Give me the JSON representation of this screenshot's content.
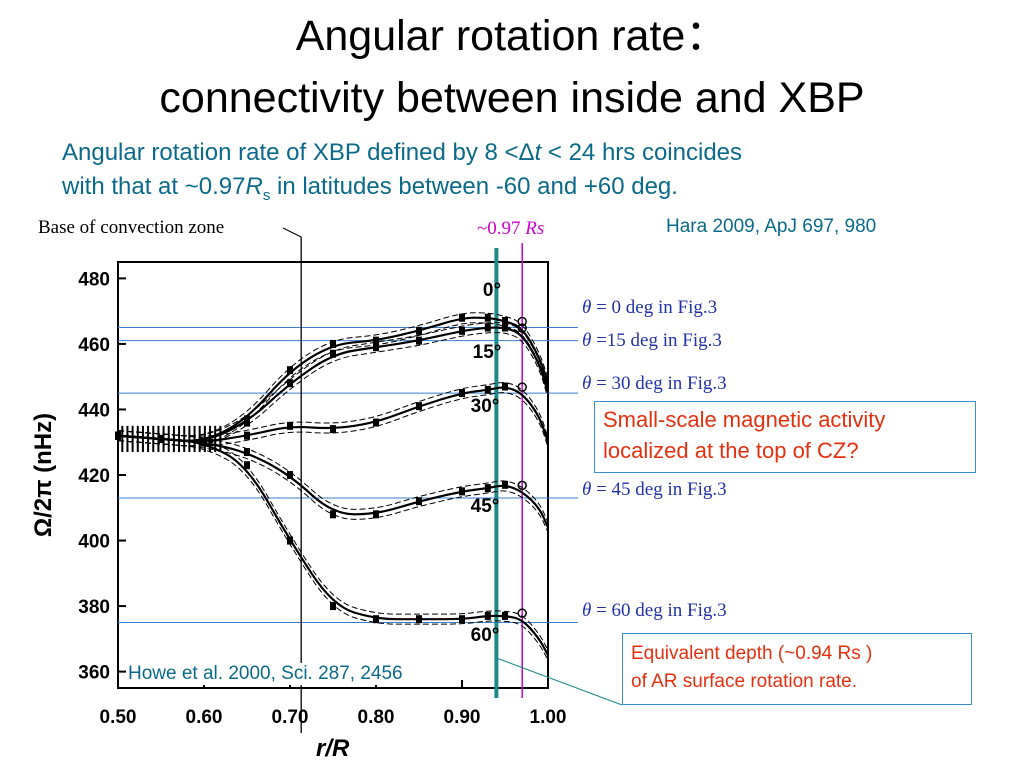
{
  "title": {
    "line1": "Angular rotation rate：",
    "line2": "connectivity between inside and XBP"
  },
  "subtitle": {
    "part1": "Angular rotation rate of XBP defined by 8 <Δ",
    "t": "t",
    "part2": " < 24 hrs  coincides",
    "part3": "with that at ~0.97",
    "R": "R",
    "s": "s",
    "part4": " in latitudes between -60 and +60 deg."
  },
  "reference_top": "Hara 2009,  ApJ 697, 980",
  "figure": {
    "base_cz_label": "Base of convection zone",
    "rs_label_prefix": "~0.97 ",
    "rs_label_italic": "Rs",
    "ylabel": "Ω/2π (nHz)",
    "xlabel": "r/R",
    "reference": "Howe et al. 2000, Sci. 287, 2456"
  },
  "theta_labels": [
    {
      "sym": "θ",
      "text": " = 0 deg in Fig.3"
    },
    {
      "sym": "θ",
      "text": " =15 deg in Fig.3"
    },
    {
      "sym": "θ",
      "text": " = 30 deg in Fig.3"
    },
    {
      "sym": "θ",
      "text": " = 45 deg in Fig.3"
    },
    {
      "sym": "θ",
      "text": " = 60 deg in Fig.3"
    }
  ],
  "callouts": {
    "small_scale_line1": "Small-scale magnetic activity",
    "small_scale_line2": "localized at the top of CZ?",
    "equiv_line1": "Equivalent depth (~0.94 Rs )",
    "equiv_line2": "of AR surface rotation rate."
  },
  "colors": {
    "subtitle": "#0b6a8a",
    "theta_labels": "#2233aa",
    "callout_text": "#e53010",
    "callout_border": "#3a8fd0",
    "rs_line": "#cc00cc",
    "depth_line": "#1a8a8a",
    "ref_lines": "#3a7fd0"
  },
  "chart_data": {
    "type": "line",
    "xlabel": "r/R",
    "ylabel": "Ω/2π (nHz)",
    "xlim": [
      0.5,
      1.0
    ],
    "ylim": [
      355,
      485
    ],
    "x_ticks": [
      "0.50",
      "0.60",
      "0.70",
      "0.80",
      "0.90",
      "1.00"
    ],
    "y_ticks": [
      "360",
      "380",
      "400",
      "420",
      "440",
      "460",
      "480"
    ],
    "vertical_lines": [
      {
        "label": "Base of convection zone",
        "x": 0.713
      },
      {
        "label": "~0.94 Rs",
        "x": 0.94
      },
      {
        "label": "~0.97 Rs",
        "x": 0.97
      }
    ],
    "horizontal_refs": [
      465,
      461,
      445,
      413,
      375
    ],
    "series": [
      {
        "name": "0°",
        "x": [
          0.5,
          0.55,
          0.6,
          0.65,
          0.7,
          0.75,
          0.8,
          0.85,
          0.9,
          0.93,
          0.95,
          0.97,
          0.99,
          1.0
        ],
        "values": [
          432,
          431,
          430,
          437,
          452,
          460,
          461,
          464,
          468,
          468,
          467,
          465,
          456,
          448
        ]
      },
      {
        "name": "15°",
        "x": [
          0.5,
          0.55,
          0.6,
          0.65,
          0.7,
          0.75,
          0.8,
          0.85,
          0.9,
          0.93,
          0.95,
          0.97,
          0.99,
          1.0
        ],
        "values": [
          432,
          431,
          430,
          436,
          448,
          457,
          459,
          461,
          464,
          465,
          465,
          463,
          454,
          445
        ]
      },
      {
        "name": "30°",
        "x": [
          0.5,
          0.55,
          0.6,
          0.65,
          0.7,
          0.75,
          0.8,
          0.85,
          0.9,
          0.93,
          0.95,
          0.97,
          0.99,
          1.0
        ],
        "values": [
          432,
          431,
          430,
          432,
          435,
          434,
          436,
          441,
          445,
          446,
          447,
          445,
          438,
          430
        ]
      },
      {
        "name": "45°",
        "x": [
          0.5,
          0.55,
          0.6,
          0.65,
          0.7,
          0.75,
          0.8,
          0.85,
          0.9,
          0.93,
          0.95,
          0.97,
          0.99,
          1.0
        ],
        "values": [
          432,
          431,
          430,
          427,
          420,
          408,
          408,
          412,
          415,
          416,
          417,
          415,
          410,
          404
        ]
      },
      {
        "name": "60°",
        "x": [
          0.5,
          0.55,
          0.6,
          0.65,
          0.7,
          0.75,
          0.8,
          0.85,
          0.9,
          0.93,
          0.95,
          0.97,
          0.99,
          1.0
        ],
        "values": [
          432,
          431,
          430,
          423,
          400,
          380,
          376,
          376,
          376,
          377,
          377,
          376,
          370,
          365
        ]
      }
    ],
    "series_labels": [
      "0°",
      "15°",
      "30°",
      "45°",
      "60°"
    ]
  }
}
